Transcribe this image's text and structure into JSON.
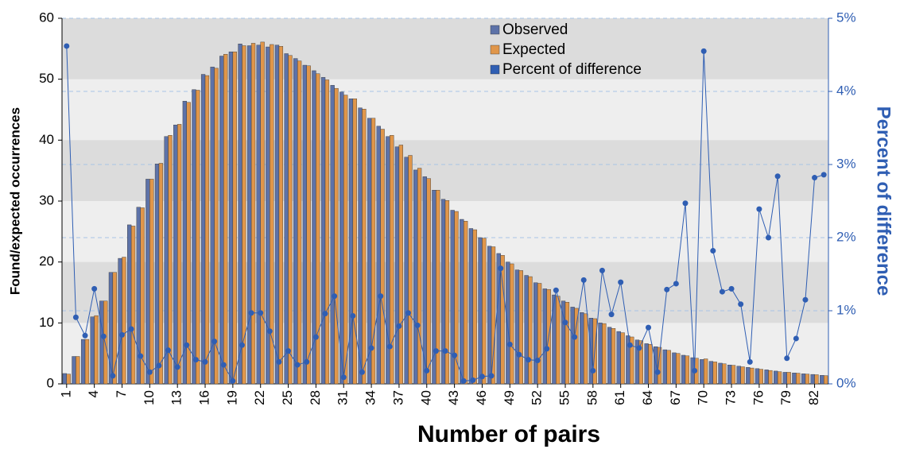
{
  "chart_data": {
    "type": "bar_line",
    "xlabel": "Number of pairs",
    "ylabel": "Found/expected occurrences",
    "y2label": "Percent of difference",
    "legend": "upper center",
    "grid": true,
    "categories": [
      "1",
      null,
      null,
      "4",
      null,
      null,
      "7",
      null,
      null,
      "10",
      null,
      null,
      "13",
      null,
      null,
      "16",
      null,
      null,
      "19",
      null,
      null,
      "22",
      null,
      null,
      "25",
      null,
      null,
      "28",
      null,
      null,
      "31",
      null,
      null,
      "34",
      null,
      null,
      "37",
      null,
      null,
      "40",
      null,
      null,
      "43",
      null,
      null,
      "46",
      null,
      null,
      "49",
      null,
      null,
      "52",
      null,
      null,
      "55",
      null,
      null,
      "58",
      null,
      null,
      "61",
      null,
      null,
      "64",
      null,
      null,
      "67",
      null,
      null,
      "70",
      null,
      null,
      "73",
      null,
      null,
      "76",
      null,
      null,
      "79",
      null,
      null,
      "82",
      null
    ],
    "ylim": [
      0,
      60
    ],
    "yticks": [
      0,
      10,
      20,
      30,
      40,
      50,
      60
    ],
    "y2lim": [
      0,
      5
    ],
    "y2ticks": [
      {
        "value": 0,
        "label": "0%"
      },
      {
        "value": 1,
        "label": "1%"
      },
      {
        "value": 2,
        "label": "2%"
      },
      {
        "value": 3,
        "label": "3%"
      },
      {
        "value": 4,
        "label": "4%"
      },
      {
        "value": 5,
        "label": "5%"
      }
    ],
    "series": [
      {
        "name": "Observed",
        "color": "#5d72a8",
        "values": [
          1.7,
          4.5,
          7.3,
          11,
          13.6,
          18.3,
          20.6,
          26.1,
          29,
          33.6,
          36.1,
          40.6,
          42.5,
          46.4,
          48.3,
          50.8,
          52,
          53.8,
          54.5,
          55.8,
          55.5,
          55.6,
          55.3,
          55.6,
          54.2,
          53.4,
          52.3,
          51.4,
          50.3,
          49,
          47.9,
          46.8,
          45.3,
          43.6,
          42.3,
          40.6,
          38.9,
          37.2,
          35.1,
          34,
          31.8,
          30.3,
          28.5,
          27,
          25.5,
          24,
          22.6,
          21.4,
          20,
          18.7,
          17.8,
          16.6,
          15.6,
          14.6,
          13.6,
          12.6,
          11.7,
          10.8,
          10,
          9.3,
          8.6,
          7.9,
          7.2,
          6.6,
          6.1,
          5.6,
          5.1,
          4.7,
          4.3,
          4,
          3.7,
          3.4,
          3.1,
          2.9,
          2.7,
          2.5,
          2.3,
          2.1,
          1.9,
          1.8,
          1.65,
          1.55,
          1.4
        ]
      },
      {
        "name": "Expected",
        "color": "#e0964a",
        "values": [
          1.6,
          4.5,
          7.3,
          11.2,
          13.6,
          18.3,
          20.8,
          25.9,
          28.9,
          33.6,
          36.2,
          40.8,
          42.6,
          46.2,
          48.2,
          50.6,
          51.8,
          54.1,
          54.5,
          55.5,
          55.9,
          56.1,
          55.7,
          55.4,
          53.9,
          53,
          52.2,
          50.9,
          49.9,
          48.5,
          47.4,
          46.8,
          45.1,
          43.6,
          41.8,
          40.8,
          39.2,
          37.5,
          35.4,
          33.7,
          31.8,
          30.1,
          28.3,
          26.7,
          25.3,
          23.9,
          22.5,
          21.1,
          19.7,
          18.6,
          17.6,
          16.5,
          15.5,
          14.4,
          13.4,
          12.4,
          11.5,
          10.7,
          9.9,
          9.1,
          8.4,
          7.7,
          7.1,
          6.5,
          6,
          5.5,
          5,
          4.6,
          4.2,
          4.1,
          3.6,
          3.3,
          3.05,
          2.8,
          2.6,
          2.4,
          2.2,
          2,
          1.9,
          1.75,
          1.6,
          1.5,
          1.35
        ]
      },
      {
        "name": "Percent of difference",
        "color": "#2f5eb3",
        "axis": "y2",
        "values": [
          4.62,
          0.91,
          0.66,
          1.3,
          0.65,
          0.11,
          0.67,
          0.75,
          0.38,
          0.16,
          0.25,
          0.46,
          0.23,
          0.53,
          0.33,
          0.3,
          0.58,
          0.26,
          0.04,
          0.53,
          0.97,
          0.97,
          0.72,
          0.3,
          0.45,
          0.26,
          0.3,
          0.64,
          0.96,
          1.2,
          0.09,
          0.93,
          0.16,
          0.49,
          1.2,
          0.51,
          0.79,
          0.97,
          0.8,
          0.18,
          0.45,
          0.45,
          0.39,
          0.04,
          0.05,
          0.1,
          0.11,
          1.58,
          0.54,
          0.4,
          0.33,
          0.32,
          0.48,
          1.28,
          0.84,
          0.64,
          1.42,
          0.18,
          1.55,
          0.95,
          1.39,
          0.53,
          0.49,
          0.77,
          0.16,
          1.29,
          1.37,
          2.47,
          0.18,
          4.55,
          1.82,
          1.26,
          1.3,
          1.09,
          0.3,
          2.39,
          2,
          2.84,
          0.35,
          0.62,
          1.15,
          2.82,
          2.86
        ]
      }
    ]
  }
}
